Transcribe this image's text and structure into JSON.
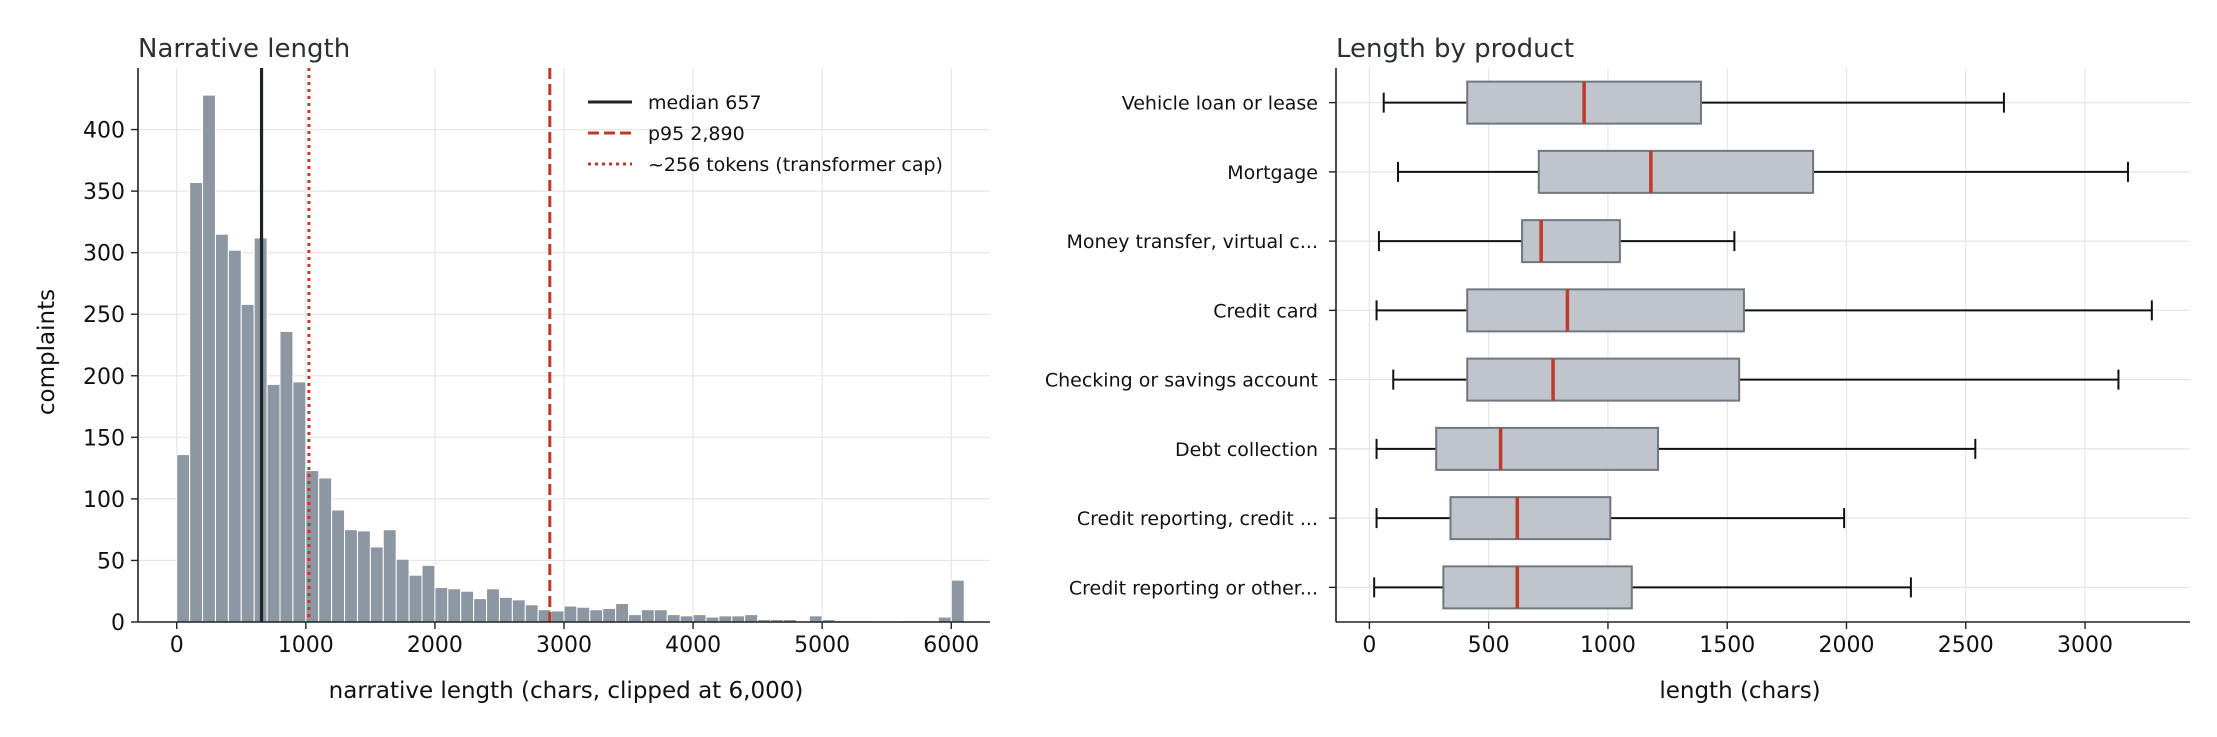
{
  "colors": {
    "bar": "#8c97a3",
    "bar_edge": "#ffffff",
    "box_fill": "#c0c5cc",
    "box_edge": "#6f7782",
    "median": "#c0392b",
    "p95": "#c0392b",
    "cap": "#c0392b",
    "median_line": "#1f2328",
    "grid": "#e6e6e6",
    "axis": "#222222"
  },
  "chart_data": [
    {
      "type": "bar",
      "title": "Narrative length",
      "xlabel": "narrative length (chars, clipped at 6,000)",
      "ylabel": "complaints",
      "xlim": [
        -300,
        6300
      ],
      "ylim": [
        0,
        450
      ],
      "xticks": [
        0,
        1000,
        2000,
        3000,
        4000,
        5000,
        6000
      ],
      "xtick_labels": [
        "0",
        "1000",
        "2000",
        "3000",
        "4000",
        "5000",
        "6000"
      ],
      "yticks": [
        0,
        50,
        100,
        150,
        200,
        250,
        300,
        350,
        400
      ],
      "ytick_labels": [
        "0",
        "50",
        "100",
        "150",
        "200",
        "250",
        "300",
        "350",
        "400"
      ],
      "grid": true,
      "bin_start": 0,
      "bin_width": 100,
      "values": [
        136,
        357,
        428,
        315,
        302,
        258,
        312,
        193,
        236,
        195,
        123,
        117,
        91,
        75,
        74,
        61,
        75,
        51,
        38,
        46,
        28,
        27,
        25,
        19,
        27,
        20,
        18,
        14,
        10,
        9,
        13,
        12,
        10,
        11,
        15,
        6,
        10,
        10,
        6,
        5,
        6,
        4,
        5,
        5,
        6,
        2,
        2,
        2,
        0,
        5,
        2,
        1,
        1,
        1,
        0,
        0,
        1,
        1,
        0,
        4,
        34
      ],
      "reference_lines": [
        {
          "x": 657,
          "style": "solid",
          "color_key": "median_line",
          "label": "median 657"
        },
        {
          "x": 2890,
          "style": "dashed",
          "color_key": "p95",
          "label": "p95 2,890"
        },
        {
          "x": 1024,
          "style": "dotted",
          "color_key": "cap",
          "label": "~256 tokens (transformer cap)"
        }
      ],
      "legend": "top-right"
    },
    {
      "type": "box",
      "orientation": "horizontal",
      "title": "Length by product",
      "xlabel": "length (chars)",
      "ylabel": "",
      "xlim": [
        -140,
        3440
      ],
      "xticks": [
        0,
        500,
        1000,
        1500,
        2000,
        2500,
        3000
      ],
      "xtick_labels": [
        "0",
        "500",
        "1000",
        "1500",
        "2000",
        "2500",
        "3000"
      ],
      "grid": true,
      "categories": [
        "Vehicle loan or lease",
        "Mortgage",
        "Money transfer, virtual c...",
        "Credit card",
        "Checking or savings account",
        "Debt collection",
        "Credit reporting, credit ...",
        "Credit reporting or other..."
      ],
      "boxes": [
        {
          "whislo": 60,
          "q1": 410,
          "med": 900,
          "q3": 1390,
          "whishi": 2660
        },
        {
          "whislo": 120,
          "q1": 710,
          "med": 1180,
          "q3": 1860,
          "whishi": 3180
        },
        {
          "whislo": 40,
          "q1": 640,
          "med": 720,
          "q3": 1050,
          "whishi": 1530
        },
        {
          "whislo": 30,
          "q1": 410,
          "med": 830,
          "q3": 1570,
          "whishi": 3280
        },
        {
          "whislo": 100,
          "q1": 410,
          "med": 770,
          "q3": 1550,
          "whishi": 3140
        },
        {
          "whislo": 30,
          "q1": 280,
          "med": 550,
          "q3": 1210,
          "whishi": 2540
        },
        {
          "whislo": 30,
          "q1": 340,
          "med": 620,
          "q3": 1010,
          "whishi": 1990
        },
        {
          "whislo": 20,
          "q1": 310,
          "med": 620,
          "q3": 1100,
          "whishi": 2270
        }
      ]
    }
  ]
}
